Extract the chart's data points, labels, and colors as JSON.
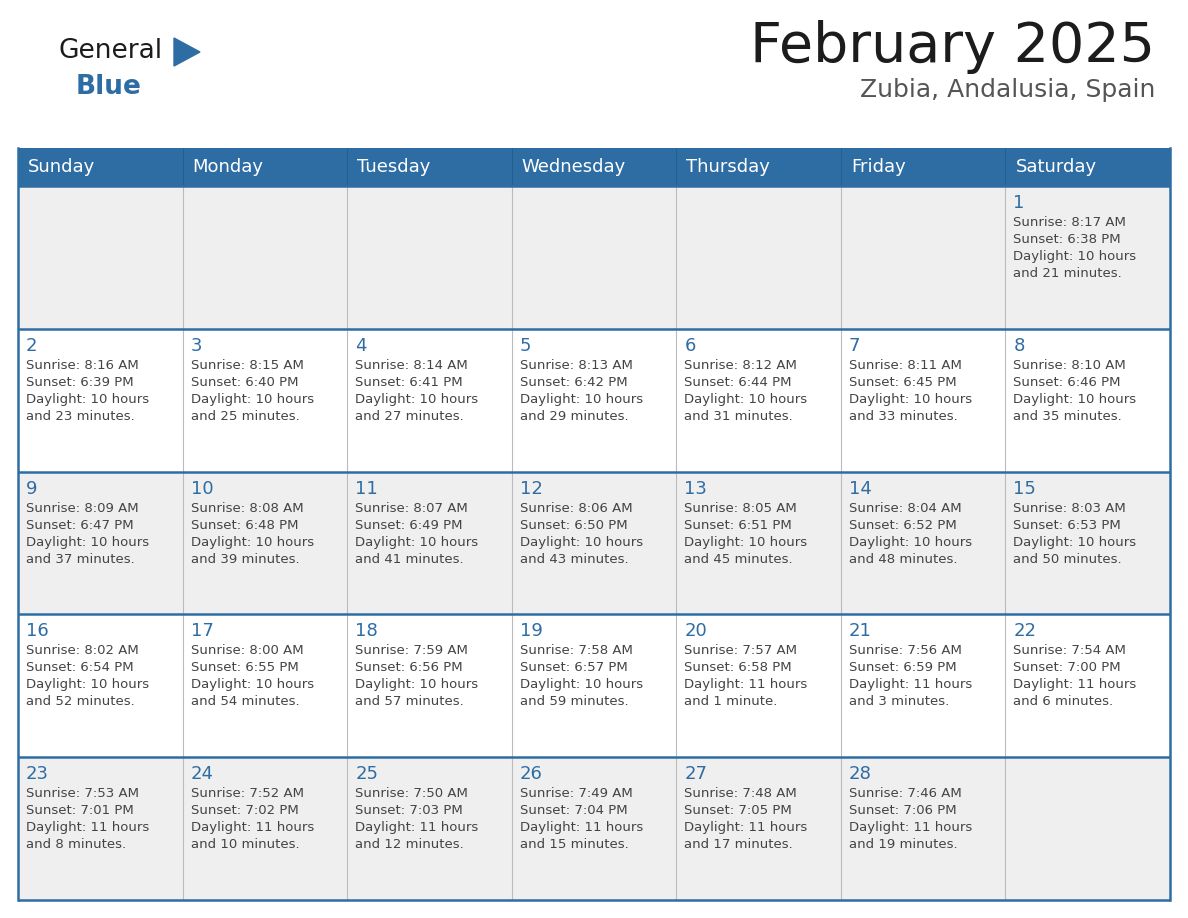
{
  "title": "February 2025",
  "subtitle": "Zubia, Andalusia, Spain",
  "header_bg": "#2E6DA4",
  "header_text_color": "#FFFFFF",
  "cell_bg_odd": "#EFEFEF",
  "cell_bg_even": "#FFFFFF",
  "day_number_color": "#2E6DA4",
  "text_color": "#444444",
  "line_color": "#2E6DA4",
  "days_of_week": [
    "Sunday",
    "Monday",
    "Tuesday",
    "Wednesday",
    "Thursday",
    "Friday",
    "Saturday"
  ],
  "calendar_data": [
    [
      null,
      null,
      null,
      null,
      null,
      null,
      {
        "day": 1,
        "sunrise": "8:17 AM",
        "sunset": "6:38 PM",
        "daylight": "10 hours and 21 minutes."
      }
    ],
    [
      {
        "day": 2,
        "sunrise": "8:16 AM",
        "sunset": "6:39 PM",
        "daylight": "10 hours and 23 minutes."
      },
      {
        "day": 3,
        "sunrise": "8:15 AM",
        "sunset": "6:40 PM",
        "daylight": "10 hours and 25 minutes."
      },
      {
        "day": 4,
        "sunrise": "8:14 AM",
        "sunset": "6:41 PM",
        "daylight": "10 hours and 27 minutes."
      },
      {
        "day": 5,
        "sunrise": "8:13 AM",
        "sunset": "6:42 PM",
        "daylight": "10 hours and 29 minutes."
      },
      {
        "day": 6,
        "sunrise": "8:12 AM",
        "sunset": "6:44 PM",
        "daylight": "10 hours and 31 minutes."
      },
      {
        "day": 7,
        "sunrise": "8:11 AM",
        "sunset": "6:45 PM",
        "daylight": "10 hours and 33 minutes."
      },
      {
        "day": 8,
        "sunrise": "8:10 AM",
        "sunset": "6:46 PM",
        "daylight": "10 hours and 35 minutes."
      }
    ],
    [
      {
        "day": 9,
        "sunrise": "8:09 AM",
        "sunset": "6:47 PM",
        "daylight": "10 hours and 37 minutes."
      },
      {
        "day": 10,
        "sunrise": "8:08 AM",
        "sunset": "6:48 PM",
        "daylight": "10 hours and 39 minutes."
      },
      {
        "day": 11,
        "sunrise": "8:07 AM",
        "sunset": "6:49 PM",
        "daylight": "10 hours and 41 minutes."
      },
      {
        "day": 12,
        "sunrise": "8:06 AM",
        "sunset": "6:50 PM",
        "daylight": "10 hours and 43 minutes."
      },
      {
        "day": 13,
        "sunrise": "8:05 AM",
        "sunset": "6:51 PM",
        "daylight": "10 hours and 45 minutes."
      },
      {
        "day": 14,
        "sunrise": "8:04 AM",
        "sunset": "6:52 PM",
        "daylight": "10 hours and 48 minutes."
      },
      {
        "day": 15,
        "sunrise": "8:03 AM",
        "sunset": "6:53 PM",
        "daylight": "10 hours and 50 minutes."
      }
    ],
    [
      {
        "day": 16,
        "sunrise": "8:02 AM",
        "sunset": "6:54 PM",
        "daylight": "10 hours and 52 minutes."
      },
      {
        "day": 17,
        "sunrise": "8:00 AM",
        "sunset": "6:55 PM",
        "daylight": "10 hours and 54 minutes."
      },
      {
        "day": 18,
        "sunrise": "7:59 AM",
        "sunset": "6:56 PM",
        "daylight": "10 hours and 57 minutes."
      },
      {
        "day": 19,
        "sunrise": "7:58 AM",
        "sunset": "6:57 PM",
        "daylight": "10 hours and 59 minutes."
      },
      {
        "day": 20,
        "sunrise": "7:57 AM",
        "sunset": "6:58 PM",
        "daylight": "11 hours and 1 minute."
      },
      {
        "day": 21,
        "sunrise": "7:56 AM",
        "sunset": "6:59 PM",
        "daylight": "11 hours and 3 minutes."
      },
      {
        "day": 22,
        "sunrise": "7:54 AM",
        "sunset": "7:00 PM",
        "daylight": "11 hours and 6 minutes."
      }
    ],
    [
      {
        "day": 23,
        "sunrise": "7:53 AM",
        "sunset": "7:01 PM",
        "daylight": "11 hours and 8 minutes."
      },
      {
        "day": 24,
        "sunrise": "7:52 AM",
        "sunset": "7:02 PM",
        "daylight": "11 hours and 10 minutes."
      },
      {
        "day": 25,
        "sunrise": "7:50 AM",
        "sunset": "7:03 PM",
        "daylight": "11 hours and 12 minutes."
      },
      {
        "day": 26,
        "sunrise": "7:49 AM",
        "sunset": "7:04 PM",
        "daylight": "11 hours and 15 minutes."
      },
      {
        "day": 27,
        "sunrise": "7:48 AM",
        "sunset": "7:05 PM",
        "daylight": "11 hours and 17 minutes."
      },
      {
        "day": 28,
        "sunrise": "7:46 AM",
        "sunset": "7:06 PM",
        "daylight": "11 hours and 19 minutes."
      },
      null
    ]
  ]
}
